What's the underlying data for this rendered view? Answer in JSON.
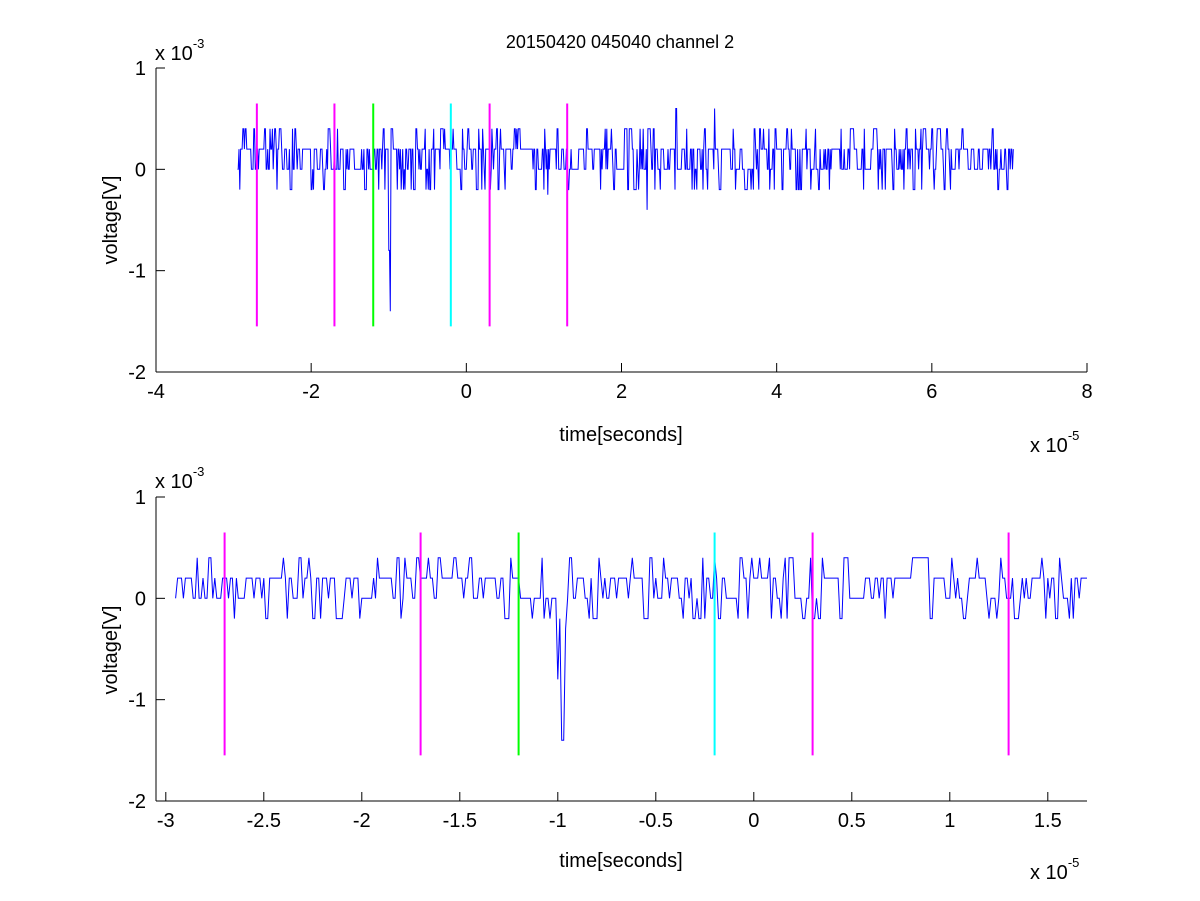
{
  "figure": {
    "title": "20150420 045040 channel 2"
  },
  "chart_data": [
    {
      "type": "line",
      "title": "20150420 045040 channel 2",
      "xlabel": "time[seconds]",
      "ylabel": "voltage[V]",
      "x_exponent_label": "x 10",
      "x_exponent_power": "-5",
      "y_exponent_label": "x 10",
      "y_exponent_power": "-3",
      "xlim": [
        -4,
        8
      ],
      "ylim": [
        -2,
        1
      ],
      "xticks": [
        -4,
        -2,
        0,
        2,
        4,
        6,
        8
      ],
      "xtick_labels": [
        "-4",
        "-2",
        "0",
        "2",
        "4",
        "6",
        "8"
      ],
      "yticks": [
        -2,
        -1,
        0,
        1
      ],
      "ytick_labels": [
        "-2",
        "-1",
        "0",
        "1"
      ],
      "grid": false,
      "series": [
        {
          "color": "#0000ff",
          "x_range": [
            -2.95,
            7.05
          ],
          "levels": [
            -0.2,
            0,
            0.2,
            0.4
          ],
          "events": [
            {
              "x": -0.98,
              "y": -1.4
            },
            {
              "x": -1.0,
              "y": -0.8
            },
            {
              "x": 2.33,
              "y": -0.4
            },
            {
              "x": 2.7,
              "y": 0.6
            },
            {
              "x": 3.2,
              "y": 0.6
            },
            {
              "x": 1.05,
              "y": -0.25
            }
          ]
        }
      ],
      "markers": [
        {
          "x": -2.7,
          "color": "#ff00ff"
        },
        {
          "x": -1.7,
          "color": "#ff00ff"
        },
        {
          "x": -1.2,
          "color": "#00ff00"
        },
        {
          "x": -0.2,
          "color": "#00ffff"
        },
        {
          "x": 0.3,
          "color": "#ff00ff"
        },
        {
          "x": 1.3,
          "color": "#ff00ff"
        }
      ],
      "marker_yrange": [
        -1.55,
        0.65
      ]
    },
    {
      "type": "line",
      "xlabel": "time[seconds]",
      "ylabel": "voltage[V]",
      "x_exponent_label": "x 10",
      "x_exponent_power": "-5",
      "y_exponent_label": "x 10",
      "y_exponent_power": "-3",
      "xlim": [
        -3.05,
        1.7
      ],
      "ylim": [
        -2,
        1
      ],
      "xticks": [
        -3,
        -2.5,
        -2,
        -1.5,
        -1,
        -0.5,
        0,
        0.5,
        1,
        1.5
      ],
      "xtick_labels": [
        "-3",
        "-2.5",
        "-2",
        "-1.5",
        "-1",
        "-0.5",
        "0",
        "0.5",
        "1",
        "1.5"
      ],
      "yticks": [
        -2,
        -1,
        0,
        1
      ],
      "ytick_labels": [
        "-2",
        "-1",
        "0",
        "1"
      ],
      "grid": false,
      "series": [
        {
          "color": "#0000ff",
          "x_range": [
            -2.95,
            1.7
          ],
          "levels": [
            -0.2,
            0,
            0.2,
            0.4
          ],
          "events": [
            {
              "x": -0.98,
              "y": -1.4
            },
            {
              "x": -1.0,
              "y": -0.8
            },
            {
              "x": -0.96,
              "y": -0.3
            }
          ]
        }
      ],
      "markers": [
        {
          "x": -2.7,
          "color": "#ff00ff"
        },
        {
          "x": -1.7,
          "color": "#ff00ff"
        },
        {
          "x": -1.2,
          "color": "#00ff00"
        },
        {
          "x": -0.2,
          "color": "#00ffff"
        },
        {
          "x": 0.3,
          "color": "#ff00ff"
        },
        {
          "x": 1.3,
          "color": "#ff00ff"
        }
      ],
      "marker_yrange": [
        -1.55,
        0.65
      ]
    }
  ]
}
